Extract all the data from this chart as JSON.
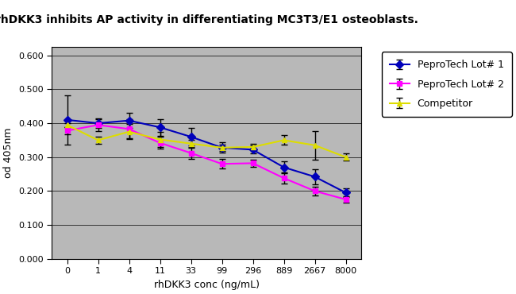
{
  "title": "rhDKK3 inhibits AP activity in differentiating MC3T3/E1 osteoblasts.",
  "xlabel": "rhDKK3 conc (ng/mL)",
  "ylabel": "od 405nm",
  "x_labels": [
    "0",
    "1",
    "4",
    "11",
    "33",
    "99",
    "296",
    "889",
    "2667",
    "8000"
  ],
  "x_positions": [
    0,
    1,
    2,
    3,
    4,
    5,
    6,
    7,
    8,
    9
  ],
  "series": [
    {
      "label": "PeproTech Lot# 1",
      "color": "#0000BB",
      "marker": "D",
      "y": [
        0.41,
        0.4,
        0.408,
        0.388,
        0.36,
        0.328,
        0.322,
        0.27,
        0.242,
        0.195
      ],
      "yerr": [
        0.072,
        0.015,
        0.022,
        0.025,
        0.025,
        0.015,
        0.012,
        0.018,
        0.022,
        0.012
      ]
    },
    {
      "label": "PeproTech Lot# 2",
      "color": "#FF00FF",
      "marker": "s",
      "y": [
        0.378,
        0.395,
        0.383,
        0.342,
        0.312,
        0.28,
        0.282,
        0.238,
        0.2,
        0.175
      ],
      "yerr": [
        0.01,
        0.018,
        0.028,
        0.018,
        0.018,
        0.014,
        0.01,
        0.016,
        0.013,
        0.01
      ]
    },
    {
      "label": "Competitor",
      "color": "#DDDD00",
      "marker": "^",
      "y": [
        0.395,
        0.35,
        0.375,
        0.352,
        0.34,
        0.328,
        0.33,
        0.35,
        0.335,
        0.3
      ],
      "yerr": [
        0.006,
        0.01,
        0.022,
        0.022,
        0.012,
        0.01,
        0.01,
        0.014,
        0.042,
        0.01
      ]
    }
  ],
  "ylim": [
    0.0,
    0.625
  ],
  "yticks": [
    0.0,
    0.1,
    0.2,
    0.3,
    0.4,
    0.5,
    0.6
  ],
  "plot_bg_color": "#B8B8B8",
  "outer_bg_color": "#FFFFFF",
  "legend_fontsize": 9,
  "title_fontsize": 10,
  "axis_label_fontsize": 9,
  "tick_fontsize": 8
}
